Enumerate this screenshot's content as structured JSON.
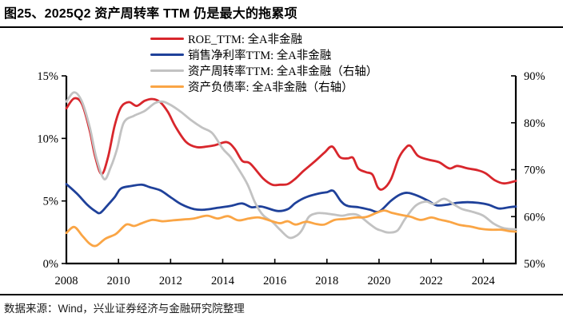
{
  "header": {
    "title": "图25、2025Q2 资产周转率 TTM 仍是最大的拖累项"
  },
  "footer": {
    "source": "数据来源：Wind，兴业证券经济与金融研究院整理"
  },
  "chart_data": {
    "type": "line",
    "title": "图25、2025Q2 资产周转率 TTM 仍是最大的拖累项",
    "grid": false,
    "legend_position": "top-center",
    "axis_color": "#000000",
    "x_axis": {
      "range": [
        2008,
        2025.25
      ],
      "tick_values": [
        2008,
        2010,
        2012,
        2014,
        2016,
        2018,
        2020,
        2022,
        2024
      ],
      "tick_labels": [
        "2008",
        "2010",
        "2012",
        "2014",
        "2016",
        "2018",
        "2020",
        "2022",
        "2024"
      ]
    },
    "y_axis_left": {
      "range": [
        0,
        15
      ],
      "tick_values": [
        0,
        5,
        10,
        15
      ],
      "tick_labels": [
        "0%",
        "5%",
        "10%",
        "15%"
      ]
    },
    "y_axis_right": {
      "range": [
        50,
        90
      ],
      "tick_values": [
        50,
        60,
        70,
        80,
        90
      ],
      "tick_labels": [
        "50%",
        "60%",
        "70%",
        "80%",
        "90%"
      ]
    },
    "series": [
      {
        "name": "roe-ttm",
        "label": "ROE_TTM: 全A非金融",
        "axis": "left",
        "color": "#d8262c",
        "x": [
          2008.0,
          2008.3,
          2008.6,
          2008.9,
          2009.1,
          2009.35,
          2009.6,
          2009.85,
          2010.1,
          2010.4,
          2010.7,
          2011.0,
          2011.3,
          2011.6,
          2011.9,
          2012.2,
          2012.6,
          2013.0,
          2013.4,
          2013.7,
          2014.15,
          2014.45,
          2014.75,
          2015.05,
          2015.55,
          2015.9,
          2016.2,
          2016.5,
          2016.8,
          2017.1,
          2017.5,
          2017.9,
          2018.2,
          2018.5,
          2018.8,
          2019.0,
          2019.2,
          2019.5,
          2019.75,
          2019.95,
          2020.15,
          2020.45,
          2020.75,
          2021.0,
          2021.2,
          2021.5,
          2021.9,
          2022.3,
          2022.7,
          2023.0,
          2023.4,
          2023.8,
          2024.1,
          2024.45,
          2024.8,
          2025.25
        ],
        "y": [
          12.4,
          13.2,
          12.75,
          10.6,
          8.6,
          7.15,
          8.5,
          11.0,
          12.5,
          12.9,
          12.6,
          13.0,
          13.15,
          12.9,
          12.1,
          10.9,
          9.7,
          9.3,
          9.35,
          9.45,
          9.7,
          9.2,
          8.2,
          8.0,
          6.8,
          6.3,
          6.3,
          6.35,
          6.8,
          7.4,
          8.1,
          8.85,
          9.35,
          8.5,
          8.4,
          8.45,
          7.6,
          7.3,
          7.1,
          6.1,
          5.95,
          6.7,
          8.4,
          9.2,
          9.4,
          8.6,
          8.3,
          8.1,
          7.6,
          7.8,
          7.6,
          7.45,
          7.2,
          6.65,
          6.4,
          6.6
        ]
      },
      {
        "name": "net-margin-ttm",
        "label": "销售净利率TTM: 全A非金融",
        "axis": "left",
        "color": "#1f419a",
        "x": [
          2008.0,
          2008.4,
          2008.8,
          2009.1,
          2009.3,
          2009.6,
          2009.85,
          2010.1,
          2010.5,
          2010.9,
          2011.2,
          2011.6,
          2012.0,
          2012.4,
          2012.9,
          2013.3,
          2013.8,
          2014.3,
          2014.75,
          2015.1,
          2015.5,
          2016.1,
          2016.5,
          2016.8,
          2017.2,
          2017.7,
          2018.0,
          2018.25,
          2018.55,
          2018.8,
          2019.2,
          2019.65,
          2020.0,
          2020.45,
          2020.8,
          2021.1,
          2021.5,
          2021.9,
          2022.2,
          2022.6,
          2023.0,
          2023.4,
          2023.8,
          2024.2,
          2024.6,
          2025.0,
          2025.25
        ],
        "y": [
          6.35,
          5.6,
          4.7,
          4.2,
          4.05,
          4.7,
          5.3,
          6.0,
          6.2,
          6.3,
          6.1,
          5.85,
          5.3,
          4.75,
          4.35,
          4.3,
          4.45,
          4.6,
          4.8,
          4.5,
          4.55,
          4.2,
          4.35,
          4.85,
          5.3,
          5.6,
          5.7,
          5.8,
          4.95,
          4.6,
          4.5,
          4.3,
          4.15,
          5.0,
          5.5,
          5.65,
          5.4,
          5.0,
          4.65,
          4.7,
          4.85,
          4.9,
          4.85,
          4.7,
          4.4,
          4.5,
          4.55
        ]
      },
      {
        "name": "asset-turnover-ttm",
        "label": "资产周转率TTM: 全A非金融（右轴）",
        "axis": "right",
        "color": "#c2c2c2",
        "x": [
          2008.0,
          2008.3,
          2008.6,
          2008.9,
          2009.15,
          2009.45,
          2009.7,
          2009.95,
          2010.2,
          2010.6,
          2011.0,
          2011.4,
          2011.7,
          2012.0,
          2012.4,
          2012.8,
          2013.2,
          2013.6,
          2014.0,
          2014.3,
          2014.6,
          2014.95,
          2015.25,
          2015.55,
          2015.9,
          2016.2,
          2016.55,
          2016.85,
          2017.05,
          2017.3,
          2017.6,
          2017.9,
          2018.3,
          2018.6,
          2018.9,
          2019.2,
          2019.6,
          2019.9,
          2020.1,
          2020.35,
          2020.7,
          2021.0,
          2021.4,
          2021.8,
          2022.1,
          2022.5,
          2022.9,
          2023.2,
          2023.6,
          2024.0,
          2024.4,
          2024.8,
          2025.25
        ],
        "y": [
          84.5,
          86.5,
          84.5,
          79.0,
          72.5,
          68.0,
          70.5,
          74.5,
          80.0,
          81.5,
          82.5,
          84.2,
          84.5,
          83.8,
          82.3,
          80.5,
          79.0,
          77.8,
          74.5,
          72.7,
          70.2,
          66.9,
          62.9,
          60.3,
          58.9,
          57.2,
          55.5,
          56.0,
          57.2,
          59.9,
          60.7,
          60.7,
          60.4,
          60.2,
          60.5,
          60.3,
          58.6,
          57.4,
          57.0,
          56.6,
          57.0,
          59.5,
          62.3,
          63.2,
          62.7,
          63.8,
          62.5,
          61.6,
          61.0,
          60.2,
          58.5,
          57.5,
          57.3
        ]
      },
      {
        "name": "debt-ratio",
        "label": "资产负债率: 全A非金融（右轴）",
        "axis": "right",
        "color": "#faa545",
        "x": [
          2008.0,
          2008.3,
          2008.6,
          2008.9,
          2009.15,
          2009.5,
          2009.9,
          2010.3,
          2010.6,
          2010.9,
          2011.3,
          2011.7,
          2012.1,
          2012.5,
          2012.9,
          2013.4,
          2013.8,
          2014.2,
          2014.6,
          2015.0,
          2015.4,
          2015.9,
          2016.2,
          2016.5,
          2016.8,
          2017.2,
          2017.6,
          2017.9,
          2018.3,
          2018.7,
          2019.1,
          2019.5,
          2019.9,
          2020.2,
          2020.5,
          2020.9,
          2021.2,
          2021.6,
          2022.0,
          2022.3,
          2022.7,
          2023.1,
          2023.5,
          2023.9,
          2024.3,
          2024.7,
          2025.0,
          2025.25
        ],
        "y": [
          56.5,
          57.8,
          56.0,
          54.2,
          53.8,
          55.3,
          56.3,
          58.3,
          58.0,
          58.6,
          59.3,
          59.0,
          59.2,
          59.4,
          59.6,
          60.2,
          59.6,
          60.1,
          59.2,
          59.6,
          59.8,
          59.0,
          58.6,
          59.0,
          58.3,
          58.9,
          58.4,
          58.3,
          59.3,
          59.5,
          59.8,
          59.9,
          60.8,
          61.3,
          60.8,
          60.3,
          60.0,
          59.3,
          59.8,
          59.4,
          58.9,
          58.2,
          57.9,
          57.4,
          57.2,
          57.2,
          56.9,
          56.8
        ]
      }
    ]
  }
}
